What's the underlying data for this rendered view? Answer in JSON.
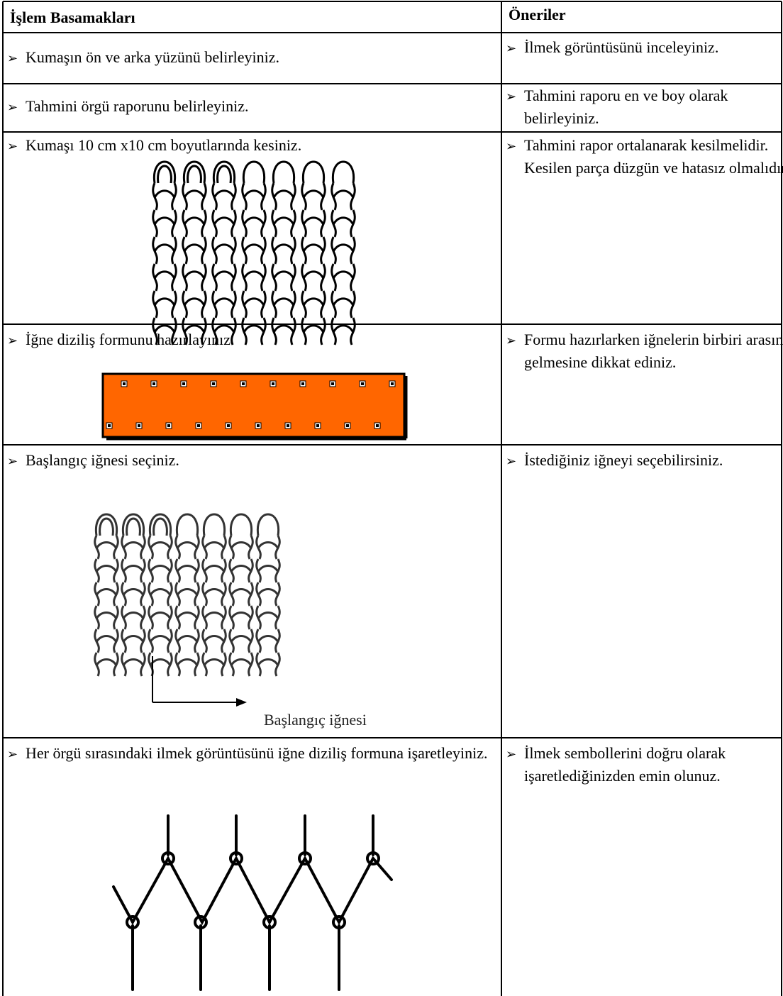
{
  "table": {
    "columns": [
      "İşlem Basamakları",
      "Öneriler"
    ],
    "rows": [
      [
        "Kumaşın ön ve arka yüzünü belirleyiniz.",
        "İlmek görüntüsünü inceleyiniz."
      ],
      [
        "Tahmini örgü raporunu belirleyiniz.",
        "Tahmini raporu en ve boy olarak belirleyiniz."
      ],
      [
        "Kumaşı 10 cm x10 cm boyutlarında kesiniz.",
        "Tahmini rapor ortalanarak kesilmelidir. Kesilen parça düzgün ve hatasız olmalıdır."
      ],
      [
        "İğne diziliş formunu hazırlayınız.",
        "Formu hazırlarken iğnelerin birbiri arasına gelmesine dikkat ediniz."
      ],
      [
        "Başlangıç iğnesi seçiniz.",
        "İstediğiniz iğneyi seçebilirsiniz."
      ],
      [
        "Her örgü sırasındaki ilmek görüntüsünü iğne diziliş formuna işaretleyiniz.",
        "İlmek sembollerini doğru olarak işaretlediğinizden emin olunuz."
      ]
    ],
    "figure_label": "Başlangıç iğnesi"
  }
}
